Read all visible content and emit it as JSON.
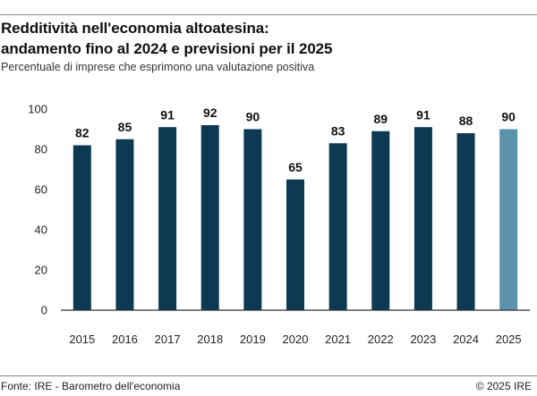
{
  "chart_data": {
    "type": "bar",
    "title_line1": "Redditività nell'economia altoatesina:",
    "title_line2": "andamento fino al 2024 e previsioni per il 2025",
    "subtitle": "Percentuale di imprese che esprimono una valutazione positiva",
    "categories": [
      "2015",
      "2016",
      "2017",
      "2018",
      "2019",
      "2020",
      "2021",
      "2022",
      "2023",
      "2024",
      "2025"
    ],
    "values": [
      82,
      85,
      91,
      92,
      90,
      65,
      83,
      89,
      91,
      88,
      90
    ],
    "data_labels": [
      "82",
      "85",
      "91",
      "92",
      "90",
      "65",
      "83",
      "89",
      "91",
      "88",
      "90"
    ],
    "forecast_category": "2025",
    "ylim": [
      0,
      100
    ],
    "yticks": [
      0,
      20,
      40,
      60,
      80,
      100
    ],
    "ytick_labels": [
      "0",
      "20",
      "40",
      "60",
      "80",
      "100"
    ],
    "xlabel": "",
    "ylabel": "",
    "grid": false,
    "colors": {
      "actual": "#0d3a52",
      "forecast": "#5b93ad",
      "axis": "#333333"
    }
  },
  "footer": {
    "source": "Fonte: IRE - Barometro dell'economia",
    "copyright": "© 2025 IRE"
  }
}
